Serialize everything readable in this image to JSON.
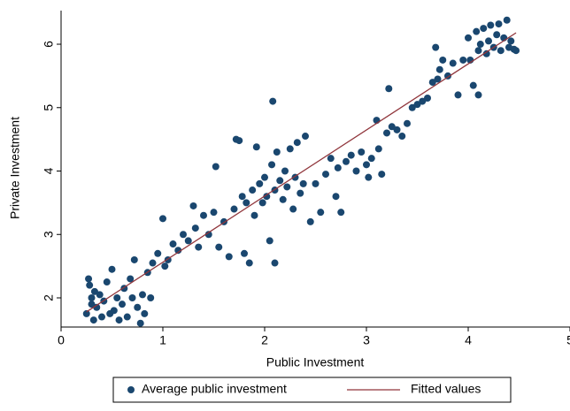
{
  "chart_data": {
    "type": "scatter",
    "x_label": "Public Investment",
    "y_label": "Private Investment",
    "xlim": [
      0,
      5
    ],
    "ylim": [
      1.54,
      6.53
    ],
    "xticks": [
      0,
      1,
      2,
      3,
      4,
      5
    ],
    "yticks": [
      2,
      3,
      4,
      5,
      6
    ],
    "legend_position": "bottom",
    "series": [
      {
        "name": "Average public investment",
        "color": "#1a476f",
        "kind": "scatter",
        "x": [
          0.25,
          0.27,
          0.28,
          0.3,
          0.3,
          0.32,
          0.33,
          0.35,
          0.38,
          0.4,
          0.42,
          0.45,
          0.48,
          0.5,
          0.52,
          0.55,
          0.57,
          0.6,
          0.62,
          0.65,
          0.68,
          0.7,
          0.72,
          0.75,
          0.78,
          0.8,
          0.82,
          0.85,
          0.88,
          0.9,
          0.95,
          1.0,
          1.02,
          1.05,
          1.1,
          1.15,
          1.2,
          1.25,
          1.3,
          1.32,
          1.35,
          1.4,
          1.45,
          1.5,
          1.52,
          1.55,
          1.6,
          1.65,
          1.7,
          1.72,
          1.75,
          1.78,
          1.8,
          1.82,
          1.85,
          1.88,
          1.9,
          1.92,
          1.95,
          1.98,
          2.0,
          2.02,
          2.05,
          2.07,
          2.08,
          2.1,
          2.1,
          2.12,
          2.15,
          2.18,
          2.2,
          2.22,
          2.25,
          2.28,
          2.3,
          2.32,
          2.35,
          2.38,
          2.4,
          2.45,
          2.5,
          2.55,
          2.6,
          2.65,
          2.7,
          2.72,
          2.75,
          2.8,
          2.85,
          2.9,
          2.95,
          3.0,
          3.02,
          3.05,
          3.1,
          3.12,
          3.15,
          3.2,
          3.22,
          3.25,
          3.3,
          3.35,
          3.4,
          3.45,
          3.5,
          3.55,
          3.6,
          3.65,
          3.68,
          3.7,
          3.72,
          3.75,
          3.8,
          3.85,
          3.9,
          3.95,
          4.0,
          4.02,
          4.05,
          4.08,
          4.1,
          4.1,
          4.12,
          4.15,
          4.18,
          4.2,
          4.22,
          4.25,
          4.28,
          4.3,
          4.32,
          4.35,
          4.38,
          4.4,
          4.42,
          4.45,
          4.47
        ],
        "values": [
          1.75,
          2.3,
          2.2,
          1.9,
          2.0,
          1.65,
          2.1,
          1.85,
          2.05,
          1.7,
          1.95,
          2.25,
          1.75,
          2.45,
          1.8,
          2.0,
          1.65,
          1.9,
          2.15,
          1.7,
          2.3,
          2.0,
          2.6,
          1.85,
          1.6,
          2.05,
          1.75,
          2.4,
          2.0,
          2.55,
          2.7,
          3.25,
          2.5,
          2.6,
          2.85,
          2.75,
          3.0,
          2.9,
          3.45,
          3.1,
          2.8,
          3.3,
          3.0,
          3.35,
          4.07,
          2.8,
          3.2,
          2.65,
          3.4,
          4.5,
          4.48,
          3.6,
          2.7,
          3.5,
          2.55,
          3.7,
          3.3,
          4.38,
          3.8,
          3.5,
          3.9,
          3.6,
          2.9,
          4.1,
          5.1,
          3.7,
          2.55,
          4.3,
          3.85,
          3.55,
          4.0,
          3.75,
          4.35,
          3.4,
          3.9,
          4.45,
          3.65,
          3.8,
          4.55,
          3.2,
          3.8,
          3.35,
          3.95,
          4.2,
          3.6,
          4.05,
          3.35,
          4.15,
          4.25,
          4.0,
          4.3,
          4.1,
          3.9,
          4.2,
          4.8,
          4.35,
          3.95,
          4.6,
          5.3,
          4.7,
          4.65,
          4.55,
          4.75,
          5.0,
          5.05,
          5.1,
          5.15,
          5.4,
          5.95,
          5.45,
          5.6,
          5.75,
          5.5,
          5.7,
          5.2,
          5.75,
          6.1,
          5.75,
          5.35,
          6.2,
          5.9,
          5.2,
          6.0,
          6.25,
          5.85,
          6.05,
          6.3,
          5.95,
          6.15,
          6.32,
          5.9,
          6.1,
          6.38,
          5.95,
          6.05,
          5.92,
          5.9
        ]
      },
      {
        "name": "Fitted values",
        "color": "#90353b",
        "kind": "line",
        "x": [
          0.25,
          4.47
        ],
        "values": [
          1.78,
          6.18
        ]
      }
    ]
  }
}
